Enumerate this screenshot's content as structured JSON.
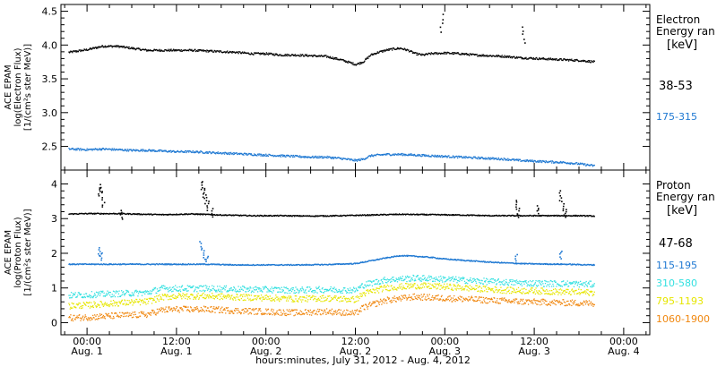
{
  "xaxis": {
    "label": "hours:minutes, July 31, 2012 - Aug.  4, 2012",
    "ticks": [
      {
        "x": 0,
        "time": "00:00",
        "date": "Aug. 1"
      },
      {
        "x": 12,
        "time": "12:00",
        "date": "Aug. 1"
      },
      {
        "x": 24,
        "time": "00:00",
        "date": "Aug. 2"
      },
      {
        "x": 36,
        "time": "12:00",
        "date": "Aug. 2"
      },
      {
        "x": 48,
        "time": "00:00",
        "date": "Aug. 3"
      },
      {
        "x": 60,
        "time": "12:00",
        "date": "Aug. 3"
      },
      {
        "x": 72,
        "time": "00:00",
        "date": "Aug. 4"
      }
    ],
    "range": [
      -3.5,
      75.5
    ],
    "unit": "hours from 00:00 Aug. 1"
  },
  "chart_data": [
    {
      "type": "scatter",
      "panel": "electron",
      "ylabel": [
        "ACE EPAM",
        "log(Electron Flux)",
        "[1/(cm²s ster MeV)]"
      ],
      "ylim": [
        2.15,
        4.6
      ],
      "yticks": [
        "2.5",
        "3.0",
        "3.5",
        "4.0",
        "4.5"
      ],
      "ytick_values": [
        2.5,
        3.0,
        3.5,
        4.0,
        4.5
      ],
      "legend_title": [
        "Electron",
        "Energy ran",
        "[keV]"
      ],
      "series": [
        {
          "name": "38-53",
          "color": "#000000",
          "points": [
            [
              -2.5,
              3.9
            ],
            [
              0,
              3.94
            ],
            [
              2,
              3.99
            ],
            [
              4,
              3.99
            ],
            [
              6,
              3.96
            ],
            [
              8,
              3.93
            ],
            [
              10,
              3.93
            ],
            [
              12,
              3.93
            ],
            [
              14,
              3.93
            ],
            [
              16,
              3.92
            ],
            [
              18,
              3.91
            ],
            [
              20,
              3.9
            ],
            [
              22,
              3.88
            ],
            [
              24,
              3.88
            ],
            [
              26,
              3.86
            ],
            [
              28,
              3.86
            ],
            [
              30,
              3.85
            ],
            [
              32,
              3.84
            ],
            [
              34,
              3.79
            ],
            [
              36,
              3.72
            ],
            [
              37,
              3.76
            ],
            [
              38,
              3.86
            ],
            [
              39,
              3.9
            ],
            [
              40,
              3.93
            ],
            [
              41,
              3.95
            ],
            [
              42,
              3.96
            ],
            [
              43,
              3.93
            ],
            [
              44,
              3.88
            ],
            [
              45,
              3.86
            ],
            [
              46,
              3.88
            ],
            [
              48,
              3.89
            ],
            [
              50,
              3.88
            ],
            [
              52,
              3.86
            ],
            [
              54,
              3.85
            ],
            [
              56,
              3.84
            ],
            [
              58,
              3.82
            ],
            [
              60,
              3.81
            ],
            [
              62,
              3.8
            ],
            [
              64,
              3.79
            ],
            [
              66,
              3.78
            ],
            [
              68,
              3.76
            ]
          ],
          "spikes": [
            [
              47.5,
              4.44
            ],
            [
              58.5,
              4.27
            ]
          ]
        },
        {
          "name": "175-315",
          "color": "#1e78d2",
          "points": [
            [
              -2.5,
              2.47
            ],
            [
              0,
              2.46
            ],
            [
              2,
              2.47
            ],
            [
              4,
              2.46
            ],
            [
              6,
              2.45
            ],
            [
              8,
              2.45
            ],
            [
              10,
              2.44
            ],
            [
              12,
              2.43
            ],
            [
              14,
              2.43
            ],
            [
              16,
              2.42
            ],
            [
              18,
              2.41
            ],
            [
              20,
              2.4
            ],
            [
              22,
              2.39
            ],
            [
              24,
              2.38
            ],
            [
              26,
              2.37
            ],
            [
              28,
              2.36
            ],
            [
              30,
              2.35
            ],
            [
              32,
              2.35
            ],
            [
              34,
              2.33
            ],
            [
              36,
              2.3
            ],
            [
              37,
              2.32
            ],
            [
              38,
              2.37
            ],
            [
              40,
              2.39
            ],
            [
              42,
              2.39
            ],
            [
              44,
              2.38
            ],
            [
              46,
              2.37
            ],
            [
              48,
              2.36
            ],
            [
              50,
              2.35
            ],
            [
              52,
              2.34
            ],
            [
              54,
              2.33
            ],
            [
              56,
              2.32
            ],
            [
              58,
              2.3
            ],
            [
              60,
              2.29
            ],
            [
              62,
              2.28
            ],
            [
              64,
              2.27
            ],
            [
              66,
              2.25
            ],
            [
              68,
              2.22
            ]
          ],
          "spikes": []
        }
      ]
    },
    {
      "type": "scatter",
      "panel": "proton",
      "ylabel": [
        "ACE EPAM",
        "log(Proton Flux)",
        "[1/(cm²s ster MeV)]"
      ],
      "ylim": [
        -0.35,
        4.4
      ],
      "yticks": [
        "0",
        "1",
        "2",
        "3",
        "4"
      ],
      "ytick_values": [
        0,
        1,
        2,
        3,
        4
      ],
      "legend_title": [
        "Proton",
        "Energy ran",
        "[keV]"
      ],
      "series": [
        {
          "name": "47-68",
          "color": "#000000",
          "points": [
            [
              -2.5,
              3.15
            ],
            [
              0,
              3.16
            ],
            [
              4,
              3.16
            ],
            [
              8,
              3.14
            ],
            [
              10,
              3.13
            ],
            [
              14,
              3.15
            ],
            [
              18,
              3.12
            ],
            [
              22,
              3.1
            ],
            [
              26,
              3.1
            ],
            [
              30,
              3.09
            ],
            [
              34,
              3.1
            ],
            [
              38,
              3.12
            ],
            [
              42,
              3.14
            ],
            [
              46,
              3.13
            ],
            [
              50,
              3.12
            ],
            [
              54,
              3.1
            ],
            [
              58,
              3.1
            ],
            [
              62,
              3.1
            ],
            [
              66,
              3.1
            ],
            [
              68,
              3.09
            ]
          ],
          "spikes": [
            [
              1.5,
              3.9
            ],
            [
              1.8,
              4.0
            ],
            [
              2.1,
              3.6
            ],
            [
              15.2,
              4.1
            ],
            [
              15.5,
              3.9
            ],
            [
              15.8,
              3.7
            ],
            [
              16.2,
              3.5
            ],
            [
              16.6,
              3.3
            ],
            [
              4.5,
              3.25
            ],
            [
              57.5,
              3.55
            ],
            [
              57.8,
              3.3
            ],
            [
              60.5,
              3.4
            ],
            [
              63.5,
              3.8
            ],
            [
              63.8,
              3.5
            ],
            [
              64.1,
              3.3
            ]
          ]
        },
        {
          "name": "115-195",
          "color": "#1e78d2",
          "points": [
            [
              -2.5,
              1.7
            ],
            [
              0,
              1.7
            ],
            [
              4,
              1.7
            ],
            [
              8,
              1.7
            ],
            [
              12,
              1.7
            ],
            [
              16,
              1.7
            ],
            [
              20,
              1.68
            ],
            [
              24,
              1.68
            ],
            [
              28,
              1.68
            ],
            [
              32,
              1.69
            ],
            [
              36,
              1.72
            ],
            [
              38,
              1.8
            ],
            [
              40,
              1.88
            ],
            [
              42,
              1.95
            ],
            [
              44,
              1.93
            ],
            [
              46,
              1.9
            ],
            [
              48,
              1.85
            ],
            [
              50,
              1.82
            ],
            [
              52,
              1.79
            ],
            [
              54,
              1.76
            ],
            [
              56,
              1.74
            ],
            [
              58,
              1.72
            ],
            [
              60,
              1.71
            ],
            [
              64,
              1.7
            ],
            [
              68,
              1.68
            ]
          ],
          "spikes": [
            [
              1.5,
              2.2
            ],
            [
              1.8,
              2.05
            ],
            [
              15.2,
              2.35
            ],
            [
              15.6,
              2.1
            ],
            [
              16.0,
              1.95
            ],
            [
              57.5,
              2.0
            ],
            [
              63.5,
              2.1
            ]
          ]
        },
        {
          "name": "310-580",
          "color": "#33e0e0",
          "points": [
            [
              -2.5,
              0.8
            ],
            [
              0,
              0.82
            ],
            [
              4,
              0.85
            ],
            [
              8,
              0.88
            ],
            [
              10,
              1.0
            ],
            [
              12,
              1.0
            ],
            [
              16,
              1.0
            ],
            [
              20,
              0.98
            ],
            [
              24,
              0.97
            ],
            [
              28,
              0.95
            ],
            [
              32,
              0.97
            ],
            [
              36,
              0.95
            ],
            [
              37,
              1.1
            ],
            [
              40,
              1.25
            ],
            [
              44,
              1.3
            ],
            [
              48,
              1.27
            ],
            [
              52,
              1.22
            ],
            [
              56,
              1.18
            ],
            [
              60,
              1.15
            ],
            [
              64,
              1.14
            ],
            [
              68,
              1.12
            ]
          ],
          "spikes": []
        },
        {
          "name": "795-1193",
          "color": "#e6e600",
          "points": [
            [
              -2.5,
              0.5
            ],
            [
              0,
              0.52
            ],
            [
              4,
              0.58
            ],
            [
              8,
              0.62
            ],
            [
              10,
              0.75
            ],
            [
              12,
              0.78
            ],
            [
              16,
              0.78
            ],
            [
              20,
              0.75
            ],
            [
              24,
              0.73
            ],
            [
              28,
              0.7
            ],
            [
              32,
              0.72
            ],
            [
              36,
              0.68
            ],
            [
              37,
              0.85
            ],
            [
              40,
              1.02
            ],
            [
              44,
              1.08
            ],
            [
              48,
              1.05
            ],
            [
              52,
              1.0
            ],
            [
              56,
              0.95
            ],
            [
              60,
              0.93
            ],
            [
              64,
              0.9
            ],
            [
              68,
              0.88
            ]
          ],
          "spikes": []
        },
        {
          "name": "1060-1900",
          "color": "#f0870f",
          "points": [
            [
              -2.5,
              0.15
            ],
            [
              0,
              0.17
            ],
            [
              4,
              0.22
            ],
            [
              8,
              0.25
            ],
            [
              10,
              0.38
            ],
            [
              12,
              0.4
            ],
            [
              16,
              0.4
            ],
            [
              20,
              0.36
            ],
            [
              24,
              0.33
            ],
            [
              28,
              0.3
            ],
            [
              32,
              0.34
            ],
            [
              36,
              0.28
            ],
            [
              37,
              0.45
            ],
            [
              40,
              0.66
            ],
            [
              44,
              0.76
            ],
            [
              48,
              0.72
            ],
            [
              52,
              0.68
            ],
            [
              56,
              0.64
            ],
            [
              60,
              0.61
            ],
            [
              64,
              0.59
            ],
            [
              68,
              0.57
            ]
          ],
          "spikes": []
        }
      ]
    }
  ]
}
